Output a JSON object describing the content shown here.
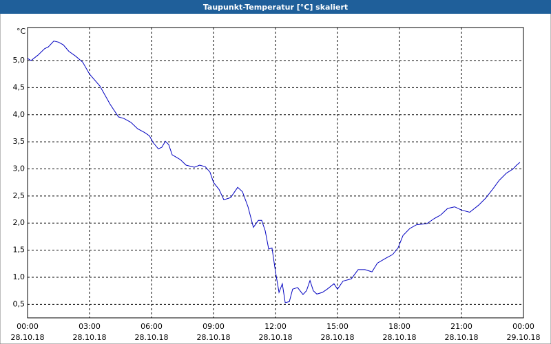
{
  "chart_data": {
    "type": "line",
    "title": "Taupunkt-Temperatur [°C] skaliert",
    "y_label": "°C",
    "color": "#0000c0",
    "grid": true,
    "x": [
      0,
      0.17,
      0.5,
      0.83,
      1,
      1.27,
      1.5,
      1.73,
      2,
      2.33,
      2.67,
      3,
      3.5,
      4,
      4.4,
      4.67,
      5,
      5.33,
      5.67,
      5.9,
      6.07,
      6.33,
      6.5,
      6.67,
      6.83,
      7,
      7.4,
      7.67,
      8.07,
      8.33,
      8.6,
      8.83,
      9,
      9.27,
      9.5,
      9.83,
      10.17,
      10.4,
      10.67,
      10.93,
      11.17,
      11.33,
      11.5,
      11.67,
      11.83,
      12,
      12.17,
      12.33,
      12.47,
      12.67,
      12.83,
      13.07,
      13.33,
      13.5,
      13.67,
      13.83,
      14,
      14.27,
      14.5,
      14.83,
      15,
      15.27,
      15.67,
      16,
      16.33,
      16.67,
      16.93,
      17.33,
      17.67,
      17.93,
      18.17,
      18.5,
      18.83,
      19.33,
      19.67,
      20,
      20.33,
      20.67,
      21,
      21.4,
      21.83,
      22.17,
      22.5,
      22.83,
      23.17,
      23.5,
      23.67,
      23.83
    ],
    "values": [
      5.04,
      5.0,
      5.1,
      5.22,
      5.25,
      5.36,
      5.34,
      5.29,
      5.17,
      5.08,
      4.97,
      4.75,
      4.53,
      4.19,
      3.96,
      3.93,
      3.86,
      3.74,
      3.67,
      3.61,
      3.49,
      3.37,
      3.4,
      3.51,
      3.45,
      3.26,
      3.17,
      3.07,
      3.03,
      3.07,
      3.04,
      2.94,
      2.75,
      2.62,
      2.43,
      2.47,
      2.66,
      2.58,
      2.3,
      1.92,
      2.05,
      2.05,
      1.86,
      1.52,
      1.54,
      1.1,
      0.72,
      0.88,
      0.53,
      0.55,
      0.78,
      0.81,
      0.68,
      0.75,
      0.94,
      0.75,
      0.69,
      0.72,
      0.78,
      0.88,
      0.78,
      0.93,
      0.97,
      1.14,
      1.14,
      1.1,
      1.26,
      1.35,
      1.42,
      1.54,
      1.77,
      1.9,
      1.97,
      1.99,
      2.08,
      2.15,
      2.27,
      2.3,
      2.24,
      2.2,
      2.33,
      2.46,
      2.62,
      2.79,
      2.92,
      3.0,
      3.07,
      3.12
    ],
    "xlim": [
      0,
      24
    ],
    "xticks": [
      {
        "value": 0,
        "label": "00:00",
        "date": "28.10.18"
      },
      {
        "value": 3,
        "label": "03:00",
        "date": "28.10.18"
      },
      {
        "value": 6,
        "label": "06:00",
        "date": "28.10.18"
      },
      {
        "value": 9,
        "label": "09:00",
        "date": "28.10.18"
      },
      {
        "value": 12,
        "label": "12:00",
        "date": "28.10.18"
      },
      {
        "value": 15,
        "label": "15:00",
        "date": "28.10.18"
      },
      {
        "value": 18,
        "label": "18:00",
        "date": "28.10.18"
      },
      {
        "value": 21,
        "label": "21:00",
        "date": "28.10.18"
      },
      {
        "value": 24,
        "label": "00:00",
        "date": "29.10.18"
      }
    ],
    "ylim": [
      0.25,
      5.61
    ],
    "yticks": [
      {
        "value": 0.5,
        "label": "0,5"
      },
      {
        "value": 1,
        "label": "1,0"
      },
      {
        "value": 1.5,
        "label": "1,5"
      },
      {
        "value": 2,
        "label": "2,0"
      },
      {
        "value": 2.5,
        "label": "2,5"
      },
      {
        "value": 3,
        "label": "3,0"
      },
      {
        "value": 3.5,
        "label": "3,5"
      },
      {
        "value": 4,
        "label": "4,0"
      },
      {
        "value": 4.5,
        "label": "4,5"
      },
      {
        "value": 5,
        "label": "5,0"
      }
    ]
  }
}
